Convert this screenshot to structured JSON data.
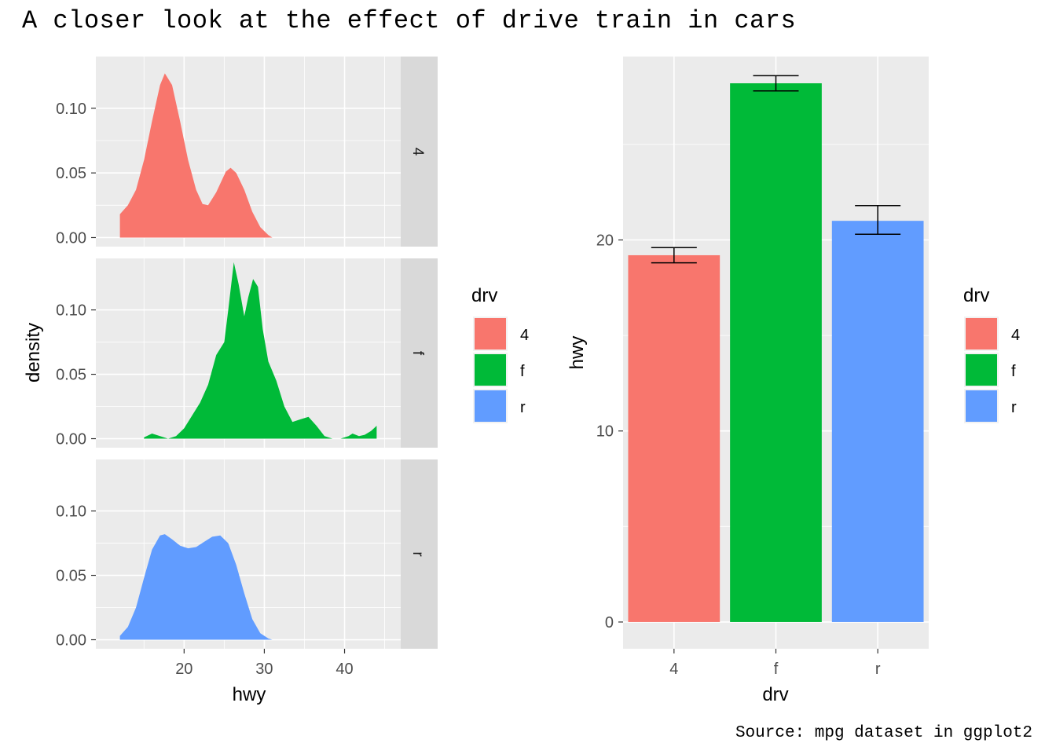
{
  "title": "A closer look at the effect of drive train in cars",
  "caption": "Source: mpg dataset in ggplot2",
  "colors": {
    "4": "#F8766D",
    "f": "#00BA38",
    "r": "#619CFF",
    "panel": "#EBEBEB",
    "strip": "#D9D9D9",
    "grid": "#FFFFFF"
  },
  "chart_data": [
    {
      "type": "area",
      "subtype": "density",
      "facet_by": "drv",
      "xlabel": "hwy",
      "ylabel": "density",
      "xlim": [
        9,
        47
      ],
      "ylim": [
        -0.007,
        0.14
      ],
      "x_ticks": [
        20,
        30,
        40
      ],
      "y_ticks": [
        0.0,
        0.05,
        0.1
      ],
      "y_tick_labels": [
        "0.00",
        "0.05",
        "0.10"
      ],
      "grid": true,
      "legend": {
        "title": "drv",
        "placement": "right"
      },
      "series": [
        {
          "name": "4",
          "facet": "4",
          "points": [
            [
              12,
              0.018
            ],
            [
              13,
              0.025
            ],
            [
              14,
              0.037
            ],
            [
              15,
              0.06
            ],
            [
              16,
              0.09
            ],
            [
              17,
              0.118
            ],
            [
              17.6,
              0.127
            ],
            [
              18.5,
              0.118
            ],
            [
              19.5,
              0.09
            ],
            [
              20.5,
              0.06
            ],
            [
              21.5,
              0.037
            ],
            [
              22.3,
              0.026
            ],
            [
              23,
              0.025
            ],
            [
              24,
              0.035
            ],
            [
              25.2,
              0.051
            ],
            [
              25.8,
              0.054
            ],
            [
              26.5,
              0.05
            ],
            [
              27.5,
              0.037
            ],
            [
              28.5,
              0.02
            ],
            [
              29.5,
              0.008
            ],
            [
              30.5,
              0.002
            ],
            [
              31,
              0.0
            ]
          ]
        },
        {
          "name": "f",
          "facet": "f",
          "points": [
            [
              15,
              0.001
            ],
            [
              16,
              0.004
            ],
            [
              17,
              0.002
            ],
            [
              18,
              0.0
            ],
            [
              19,
              0.002
            ],
            [
              20,
              0.008
            ],
            [
              21,
              0.018
            ],
            [
              22,
              0.028
            ],
            [
              23,
              0.042
            ],
            [
              24,
              0.065
            ],
            [
              25,
              0.075
            ],
            [
              25.5,
              0.1
            ],
            [
              26.2,
              0.137
            ],
            [
              26.8,
              0.12
            ],
            [
              27.5,
              0.095
            ],
            [
              28,
              0.11
            ],
            [
              28.6,
              0.124
            ],
            [
              29.2,
              0.118
            ],
            [
              29.8,
              0.085
            ],
            [
              30.5,
              0.06
            ],
            [
              31.5,
              0.045
            ],
            [
              32.5,
              0.025
            ],
            [
              33.5,
              0.013
            ],
            [
              34.5,
              0.015
            ],
            [
              35.5,
              0.017
            ],
            [
              36.5,
              0.01
            ],
            [
              37.5,
              0.002
            ],
            [
              38.5,
              0.0
            ],
            [
              39.5,
              0.0
            ],
            [
              40.5,
              0.002
            ],
            [
              41,
              0.004
            ],
            [
              41.8,
              0.002
            ],
            [
              42.5,
              0.003
            ],
            [
              43.3,
              0.006
            ],
            [
              44,
              0.01
            ]
          ]
        },
        {
          "name": "r",
          "facet": "r",
          "points": [
            [
              12,
              0.003
            ],
            [
              13,
              0.01
            ],
            [
              14,
              0.025
            ],
            [
              15,
              0.048
            ],
            [
              16,
              0.07
            ],
            [
              17,
              0.081
            ],
            [
              17.6,
              0.082
            ],
            [
              18.5,
              0.078
            ],
            [
              19.5,
              0.073
            ],
            [
              20.5,
              0.071
            ],
            [
              21.5,
              0.072
            ],
            [
              22.5,
              0.076
            ],
            [
              23.5,
              0.08
            ],
            [
              24.5,
              0.081
            ],
            [
              25.5,
              0.075
            ],
            [
              26.5,
              0.058
            ],
            [
              27.5,
              0.036
            ],
            [
              28.5,
              0.016
            ],
            [
              29.5,
              0.005
            ],
            [
              30.5,
              0.001
            ],
            [
              31,
              0.0
            ]
          ]
        }
      ]
    },
    {
      "type": "bar",
      "subtype": "bar_with_error_bars",
      "categories": [
        "4",
        "f",
        "r"
      ],
      "values": [
        19.2,
        28.2,
        21.0
      ],
      "error_bars": [
        [
          18.8,
          19.6
        ],
        [
          27.8,
          28.6
        ],
        [
          20.3,
          21.8
        ]
      ],
      "xlabel": "drv",
      "ylabel": "hwy",
      "ylim": [
        -1.4,
        29.6
      ],
      "y_ticks": [
        0,
        10,
        20
      ],
      "grid": true,
      "legend": {
        "title": "drv",
        "placement": "right"
      }
    }
  ],
  "legends": [
    {
      "title": "drv",
      "items": [
        "4",
        "f",
        "r"
      ]
    },
    {
      "title": "drv",
      "items": [
        "4",
        "f",
        "r"
      ]
    }
  ]
}
